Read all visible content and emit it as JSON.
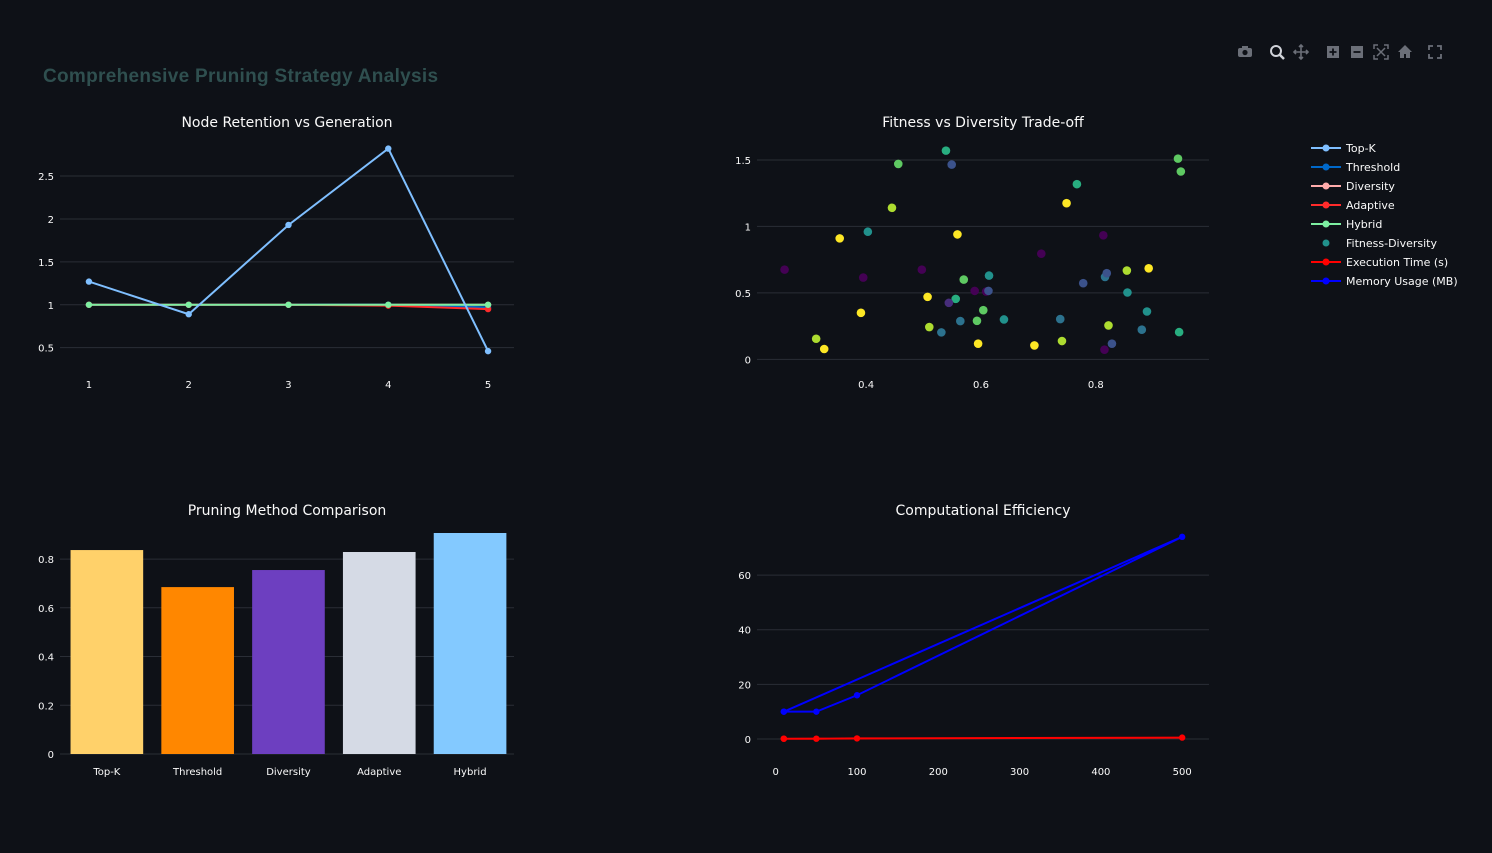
{
  "header": {
    "title": "Comprehensive Pruning Strategy Analysis"
  },
  "toolbar": {
    "icons": [
      "camera-icon",
      "zoom-icon",
      "pan-icon",
      "zoom-in-icon",
      "zoom-out-icon",
      "autoscale-icon",
      "home-icon",
      "fullscreen-icon"
    ]
  },
  "legend": {
    "items": [
      {
        "label": "Top-K",
        "color": "#7fbfff",
        "mode": "lines+markers"
      },
      {
        "label": "Threshold",
        "color": "#0068c9",
        "mode": "lines+markers"
      },
      {
        "label": "Diversity",
        "color": "#ffabab",
        "mode": "lines+markers"
      },
      {
        "label": "Adaptive",
        "color": "#ff2b2b",
        "mode": "lines+markers"
      },
      {
        "label": "Hybrid",
        "color": "#7defa1",
        "mode": "lines+markers"
      },
      {
        "label": "Fitness-Diversity",
        "color": "#21918c",
        "mode": "markers"
      },
      {
        "label": "Execution Time (s)",
        "color": "#ff0000",
        "mode": "lines+markers"
      },
      {
        "label": "Memory Usage (MB)",
        "color": "#0000ff",
        "mode": "lines+markers"
      }
    ]
  },
  "chart_data": [
    {
      "type": "line",
      "title": "Node Retention vs Generation",
      "x": [
        1,
        2,
        3,
        4,
        5
      ],
      "xticks": [
        1,
        2,
        3,
        4,
        5
      ],
      "yticks": [
        0.5,
        1,
        1.5,
        2,
        2.5
      ],
      "ylim": [
        0.24,
        2.92
      ],
      "xlim": [
        0.71,
        5.26
      ],
      "grid": true,
      "series": [
        {
          "name": "Diversity",
          "color": "#ffabab",
          "values": [
            1,
            1,
            1,
            1,
            1
          ]
        },
        {
          "name": "Threshold",
          "color": "#0068c9",
          "values": [
            1,
            1,
            1,
            1,
            0.97
          ]
        },
        {
          "name": "Adaptive",
          "color": "#ff2b2b",
          "values": [
            1,
            1,
            1,
            0.99,
            0.95
          ]
        },
        {
          "name": "Hybrid",
          "color": "#7defa1",
          "values": [
            1,
            1,
            1,
            1,
            1
          ]
        },
        {
          "name": "Top-K",
          "color": "#7fbfff",
          "values": [
            1.27,
            0.89,
            1.93,
            2.82,
            0.46
          ]
        }
      ]
    },
    {
      "type": "scatter",
      "title": "Fitness vs Diversity Trade-off",
      "xticks": [
        0.4,
        0.6,
        0.8
      ],
      "yticks": [
        0,
        0.5,
        1,
        1.5
      ],
      "xlim": [
        0.21,
        0.997
      ],
      "ylim": [
        -0.08,
        1.65
      ],
      "grid": true,
      "colorscale": "viridis",
      "points": [
        [
          0.258,
          0.675,
          "#440154"
        ],
        [
          0.354,
          0.91,
          "#fde725"
        ],
        [
          0.403,
          0.96,
          "#21918c"
        ],
        [
          0.456,
          1.47,
          "#5ec962"
        ],
        [
          0.445,
          1.14,
          "#addc30"
        ],
        [
          0.539,
          1.57,
          "#28ae80"
        ],
        [
          0.549,
          1.465,
          "#3b528b"
        ],
        [
          0.559,
          0.94,
          "#fde725"
        ],
        [
          0.395,
          0.615,
          "#440154"
        ],
        [
          0.497,
          0.675,
          "#440154"
        ],
        [
          0.57,
          0.6,
          "#5ec962"
        ],
        [
          0.614,
          0.63,
          "#21918c"
        ],
        [
          0.589,
          0.515,
          "#440154"
        ],
        [
          0.609,
          0.51,
          "#440154"
        ],
        [
          0.613,
          0.515,
          "#3b528b"
        ],
        [
          0.507,
          0.47,
          "#fde725"
        ],
        [
          0.556,
          0.455,
          "#28ae80"
        ],
        [
          0.544,
          0.425,
          "#472d7b"
        ],
        [
          0.604,
          0.37,
          "#5ec962"
        ],
        [
          0.391,
          0.35,
          "#fde725"
        ],
        [
          0.313,
          0.155,
          "#addc30"
        ],
        [
          0.327,
          0.078,
          "#fde725"
        ],
        [
          0.51,
          0.243,
          "#addc30"
        ],
        [
          0.531,
          0.203,
          "#2c728e"
        ],
        [
          0.564,
          0.288,
          "#2c728e"
        ],
        [
          0.593,
          0.29,
          "#5ec962"
        ],
        [
          0.64,
          0.3,
          "#21918c"
        ],
        [
          0.595,
          0.118,
          "#fde725"
        ],
        [
          0.705,
          0.795,
          "#440154"
        ],
        [
          0.693,
          0.105,
          "#fde725"
        ],
        [
          0.738,
          0.303,
          "#2c728e"
        ],
        [
          0.741,
          0.138,
          "#addc30"
        ],
        [
          0.749,
          1.175,
          "#fde725"
        ],
        [
          0.767,
          1.318,
          "#28ae80"
        ],
        [
          0.778,
          0.573,
          "#3b528b"
        ],
        [
          0.813,
          0.933,
          "#440154"
        ],
        [
          0.816,
          0.62,
          "#2c728e"
        ],
        [
          0.819,
          0.648,
          "#3b528b"
        ],
        [
          0.822,
          0.255,
          "#addc30"
        ],
        [
          0.815,
          0.073,
          "#440154"
        ],
        [
          0.828,
          0.118,
          "#3b528b"
        ],
        [
          0.854,
          0.668,
          "#addc30"
        ],
        [
          0.855,
          0.503,
          "#21918c"
        ],
        [
          0.892,
          0.685,
          "#fde725"
        ],
        [
          0.889,
          0.36,
          "#21918c"
        ],
        [
          0.88,
          0.223,
          "#2c728e"
        ],
        [
          0.943,
          1.51,
          "#5ec962"
        ],
        [
          0.948,
          1.413,
          "#5ec962"
        ],
        [
          0.945,
          0.205,
          "#28ae80"
        ]
      ]
    },
    {
      "type": "bar",
      "title": "Pruning Method Comparison",
      "categories": [
        "Top-K",
        "Threshold",
        "Diversity",
        "Adaptive",
        "Hybrid"
      ],
      "values": [
        0.837,
        0.685,
        0.755,
        0.829,
        0.907
      ],
      "colors": [
        "#ffd16a",
        "#ff8700",
        "#6d3fc0",
        "#d5dae5",
        "#83c9ff"
      ],
      "yticks": [
        0,
        0.2,
        0.4,
        0.6,
        0.8
      ],
      "ylim": [
        0,
        0.907
      ],
      "grid": true
    },
    {
      "type": "line",
      "title": "Computational Efficiency",
      "xticks": [
        0,
        100,
        200,
        300,
        400,
        500
      ],
      "yticks": [
        0,
        20,
        40,
        60
      ],
      "xlim": [
        -23,
        533
      ],
      "ylim": [
        -7.7,
        76.5
      ],
      "grid": true,
      "series": [
        {
          "name": "Execution Time (s)",
          "color": "#ff0000",
          "x": [
            10,
            50,
            100,
            500,
            10
          ],
          "values": [
            0.1,
            0.1,
            0.2,
            0.5,
            0.1
          ]
        },
        {
          "name": "Memory Usage (MB)",
          "color": "#0000ff",
          "x": [
            10,
            50,
            100,
            500,
            10
          ],
          "values": [
            10,
            10,
            16,
            74,
            10
          ]
        }
      ]
    }
  ]
}
